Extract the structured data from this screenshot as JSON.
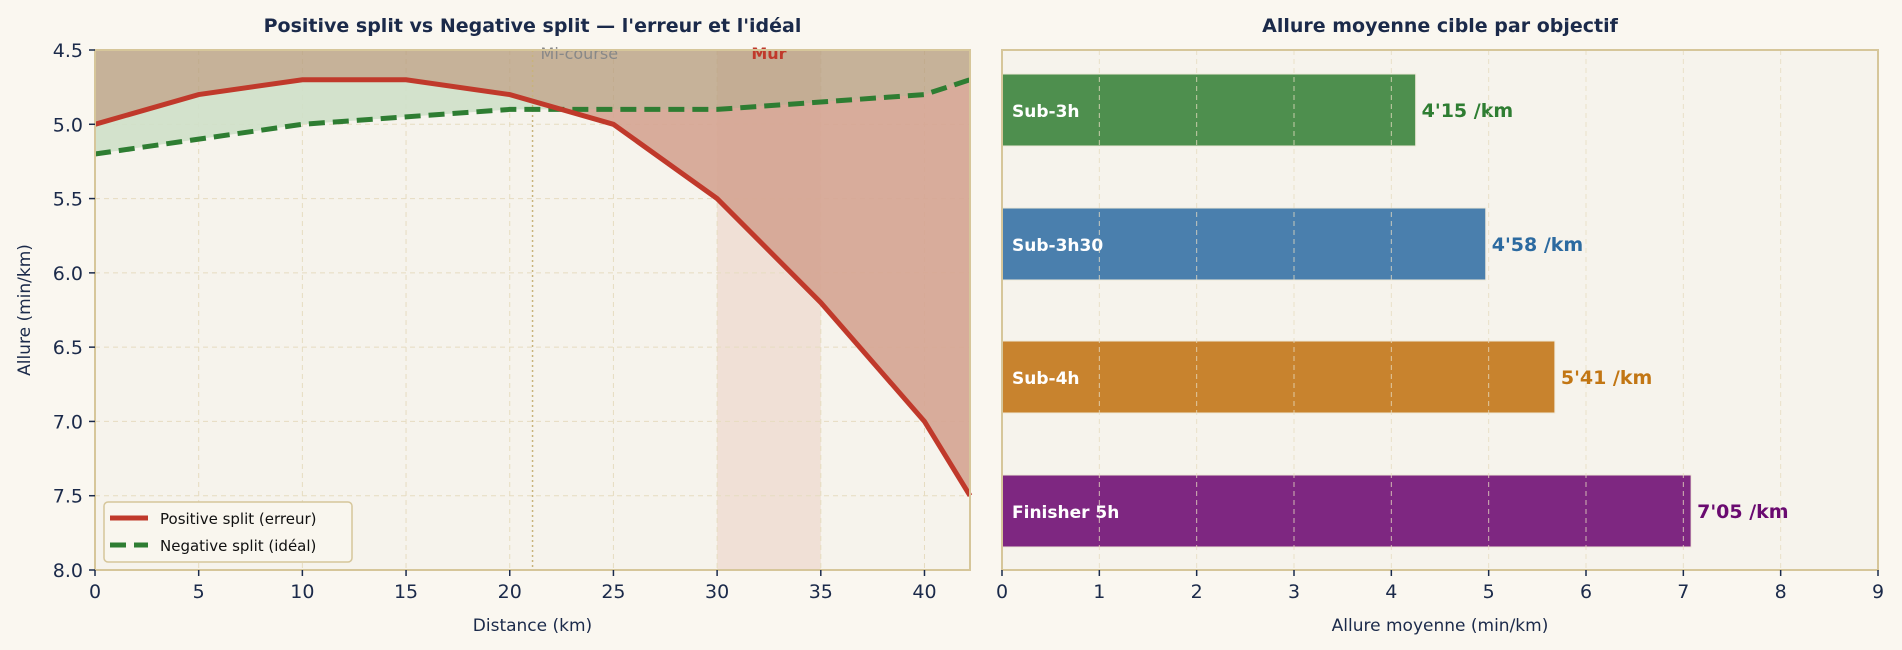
{
  "chart_data": [
    {
      "type": "line",
      "title": "Positive split vs Negative split — l'erreur et l'idéal",
      "xlabel": "Distance (km)",
      "ylabel": "Allure (min/km)",
      "xlim": [
        0,
        42.195
      ],
      "ylim": [
        8.0,
        4.5
      ],
      "y_inverted": true,
      "grid": true,
      "x_ticks": [
        "0",
        "5",
        "10",
        "15",
        "20",
        "25",
        "30",
        "35",
        "40"
      ],
      "y_ticks": [
        "4.5",
        "5.0",
        "5.5",
        "6.0",
        "6.5",
        "7.0",
        "7.5",
        "8.0"
      ],
      "x": [
        0,
        5,
        10,
        15,
        20,
        25,
        30,
        35,
        40,
        42.195
      ],
      "series": [
        {
          "name": "Positive split (erreur)",
          "color": "#c0392b",
          "style": "solid",
          "values": [
            5.0,
            4.8,
            4.7,
            4.7,
            4.8,
            5.0,
            5.5,
            6.2,
            7.0,
            7.5
          ]
        },
        {
          "name": "Negative split (idéal)",
          "color": "#2e7d32",
          "style": "dashed",
          "values": [
            5.2,
            5.1,
            5.0,
            4.95,
            4.9,
            4.9,
            4.9,
            4.85,
            4.8,
            4.7
          ]
        }
      ],
      "annotations": [
        {
          "text": "Mi-course",
          "x": 21.1,
          "type": "vline",
          "color": "#888888"
        },
        {
          "text": "Mur",
          "x_range": [
            30,
            35
          ],
          "type": "span",
          "color": "#c0392b"
        }
      ],
      "legend": {
        "position": "lower left",
        "items": [
          "Positive split (erreur)",
          "Negative split (idéal)"
        ]
      }
    },
    {
      "type": "bar",
      "orientation": "horizontal",
      "title": "Allure moyenne cible par objectif",
      "xlabel": "Allure moyenne (min/km)",
      "ylabel": "",
      "xlim": [
        0,
        9
      ],
      "x_ticks": [
        "0",
        "1",
        "2",
        "3",
        "4",
        "5",
        "6",
        "7",
        "8",
        "9"
      ],
      "grid": true,
      "categories": [
        "Sub-3h",
        "Sub-3h30",
        "Sub-4h",
        "Finisher 5h"
      ],
      "values": [
        4.25,
        4.97,
        5.68,
        7.08
      ],
      "value_labels": [
        "4'15 /km",
        "4'58 /km",
        "5'41 /km",
        "7'05 /km"
      ],
      "colors": [
        "#4e8f4e",
        "#4a7fad",
        "#c8832e",
        "#7e2781"
      ],
      "label_colors": [
        "#2e7d32",
        "#2c6aa0",
        "#c27614",
        "#6a0a70"
      ]
    }
  ]
}
